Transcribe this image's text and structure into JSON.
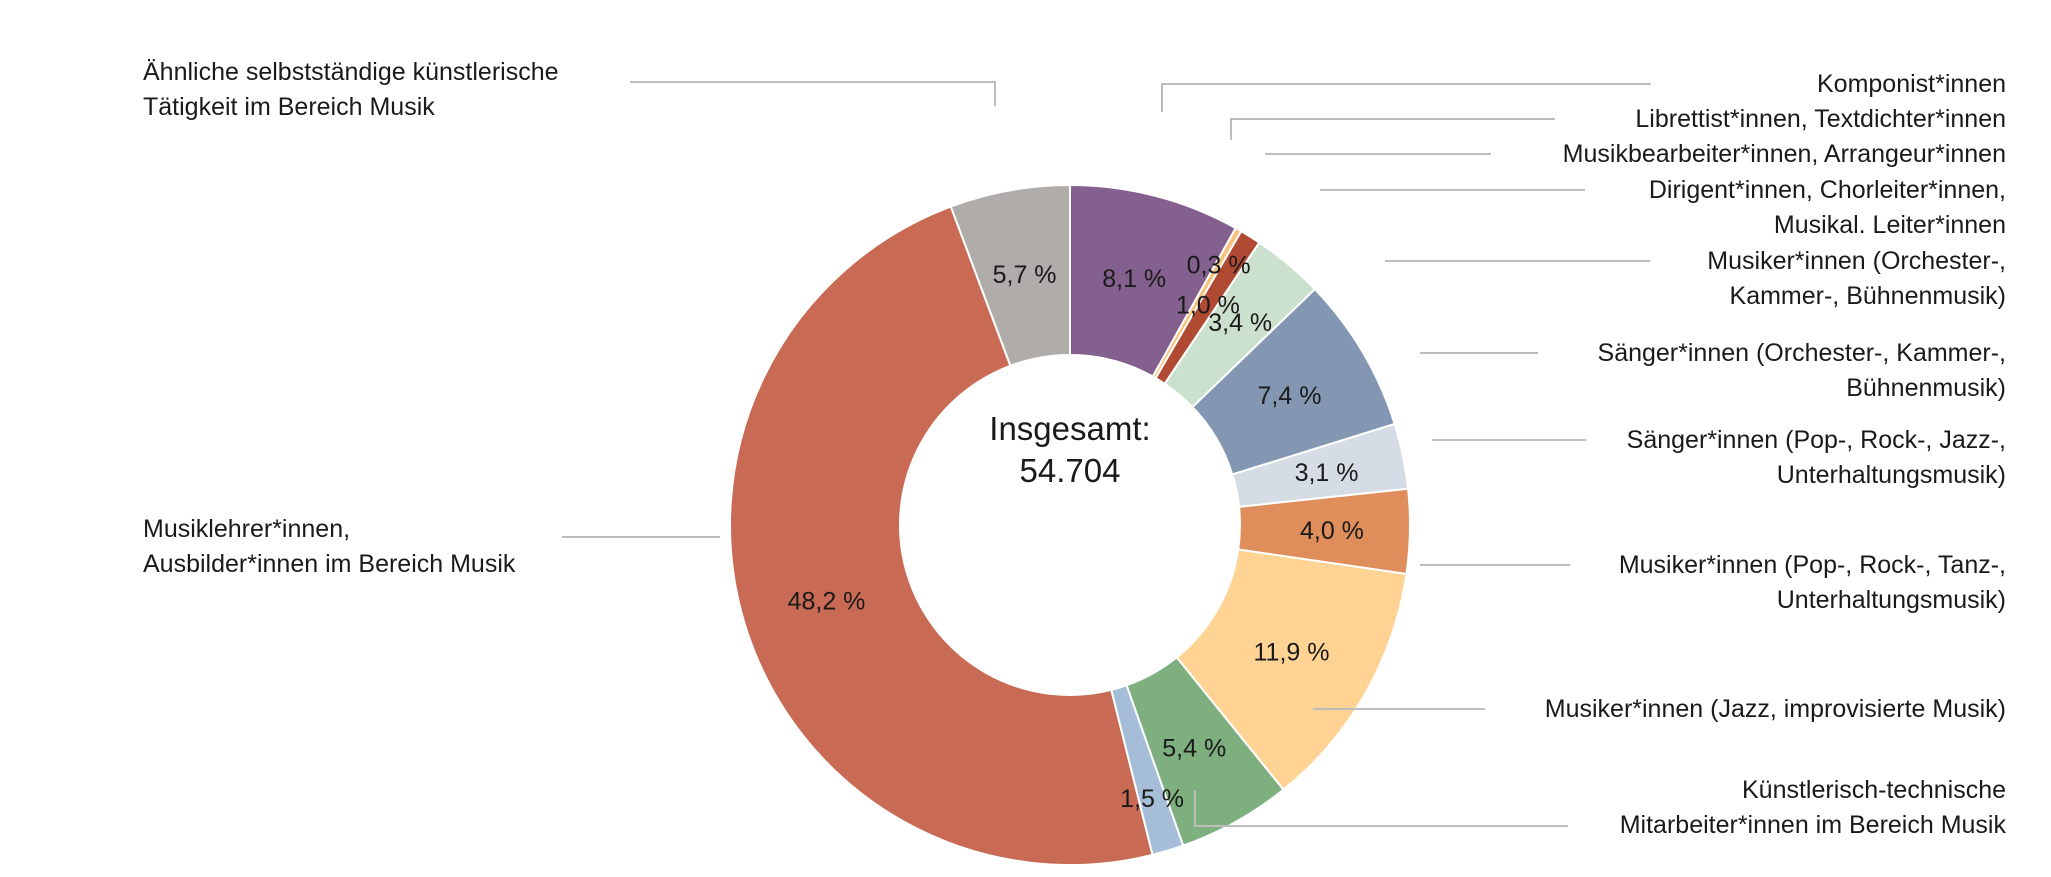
{
  "chart_data": {
    "type": "pie",
    "variant": "donut",
    "title": "",
    "center_label": [
      "Insgesamt:",
      "54.704"
    ],
    "slices": [
      {
        "name": "Komponist*innen",
        "label_lines": [
          "Komponist*innen"
        ],
        "value": 8.1,
        "value_label": "8,1 %",
        "color": "#84608F"
      },
      {
        "name": "Librettist*innen, Textdichter*innen",
        "label_lines": [
          "Librettist*innen, Textdichter*innen"
        ],
        "value": 0.3,
        "value_label": "0,3 %",
        "color": "#F9C27A"
      },
      {
        "name": "Musikbearbeiter*innen, Arrangeur*innen",
        "label_lines": [
          "Musikbearbeiter*innen, Arrangeur*innen"
        ],
        "value": 1.0,
        "value_label": "1,0 %",
        "color": "#B04A32"
      },
      {
        "name": "Dirigent*innen, Chorleiter*innen, Musikal. Leiter*innen",
        "label_lines": [
          "Dirigent*innen, Chorleiter*innen,",
          "Musikal. Leiter*innen"
        ],
        "value": 3.4,
        "value_label": "3,4 %",
        "color": "#CCE0CE"
      },
      {
        "name": "Musiker*innen (Orchester-, Kammer-, Bühnenmusik)",
        "label_lines": [
          "Musiker*innen (Orchester-,",
          "Kammer-, Bühnenmusik)"
        ],
        "value": 7.4,
        "value_label": "7,4 %",
        "color": "#8497B2"
      },
      {
        "name": "Sänger*innen (Orchester-, Kammer-, Bühnenmusik)",
        "label_lines": [
          "Sänger*innen (Orchester-, Kammer-,",
          "Bühnenmusik)"
        ],
        "value": 3.1,
        "value_label": "3,1 %",
        "color": "#D6DCE6"
      },
      {
        "name": "Sänger*innen (Pop-, Rock-, Jazz-, Unterhaltungsmusik)",
        "label_lines": [
          "Sänger*innen (Pop-, Rock-, Jazz-,",
          "Unterhaltungsmusik)"
        ],
        "value": 4.0,
        "value_label": "4,0 %",
        "color": "#DF8D5A"
      },
      {
        "name": "Musiker*innen (Pop-, Rock-, Tanz-, Unterhaltungsmusik)",
        "label_lines": [
          "Musiker*innen (Pop-, Rock-, Tanz-,",
          "Unterhaltungsmusik)"
        ],
        "value": 11.9,
        "value_label": "11,9 %",
        "color": "#FED393"
      },
      {
        "name": "Musiker*innen (Jazz, improvisierte Musik)",
        "label_lines": [
          "Musiker*innen (Jazz, improvisierte Musik)"
        ],
        "value": 5.4,
        "value_label": "5,4 %",
        "color": "#7EAF7F"
      },
      {
        "name": "Künstlerisch-technische Mitarbeiter*innen im Bereich Musik",
        "label_lines": [
          "Künstlerisch-technische",
          "Mitarbeiter*innen im Bereich Musik"
        ],
        "value": 1.5,
        "value_label": "1,5 %",
        "color": "#A6BDD8"
      },
      {
        "name": "Musiklehrer*innen, Ausbilder*innen im Bereich Musik",
        "label_lines": [
          "Musiklehrer*innen,",
          "Ausbilder*innen im Bereich Musik"
        ],
        "value": 48.2,
        "value_label": "48,2 %",
        "color": "#C96B54"
      },
      {
        "name": "Ähnliche selbstständige künstlerische Tätigkeit im Bereich Musik",
        "label_lines": [
          "Ähnliche selbstständige künstlerische",
          "Tätigkeit im Bereich Musik"
        ],
        "value": 5.7,
        "value_label": "5,7 %",
        "color": "#B0ACAA"
      }
    ]
  }
}
